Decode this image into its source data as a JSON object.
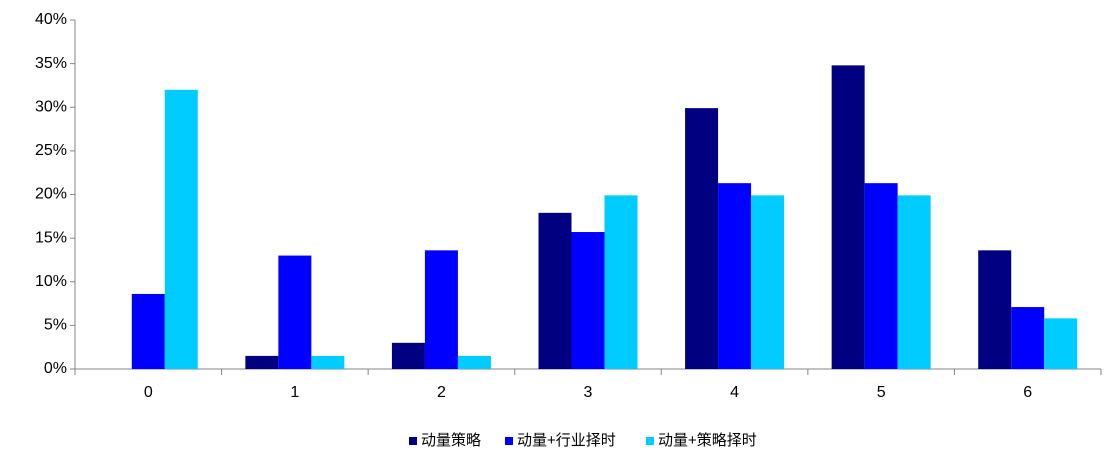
{
  "chart_data": {
    "type": "bar",
    "categories": [
      "0",
      "1",
      "2",
      "3",
      "4",
      "5",
      "6"
    ],
    "series": [
      {
        "name": "动量策略",
        "color": "#000080",
        "values": [
          0,
          1.5,
          3.0,
          17.9,
          29.9,
          34.8,
          13.6
        ]
      },
      {
        "name": "动量+行业择时",
        "color": "#0000ff",
        "values": [
          8.6,
          13.0,
          13.6,
          15.7,
          21.3,
          21.3,
          7.1
        ]
      },
      {
        "name": "动量+策略择时",
        "color": "#00ccff",
        "values": [
          32.0,
          1.5,
          1.5,
          19.9,
          19.9,
          19.9,
          5.8
        ]
      }
    ],
    "ylim": [
      0,
      40
    ],
    "yticks": [
      {
        "value": 0,
        "label": "0%"
      },
      {
        "value": 5,
        "label": "5%"
      },
      {
        "value": 10,
        "label": "10%"
      },
      {
        "value": 15,
        "label": "15%"
      },
      {
        "value": 20,
        "label": "20%"
      },
      {
        "value": 25,
        "label": "25%"
      },
      {
        "value": 30,
        "label": "30%"
      },
      {
        "value": 35,
        "label": "35%"
      },
      {
        "value": 40,
        "label": "40%"
      }
    ],
    "grid": false,
    "legend": "bottom"
  }
}
